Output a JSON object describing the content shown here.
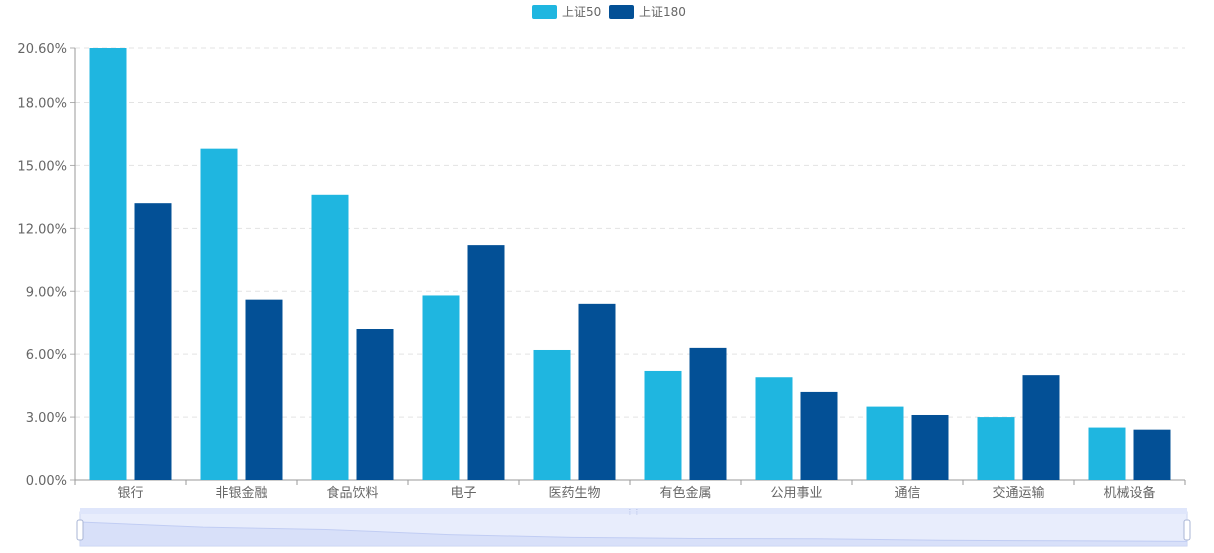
{
  "chart_data": {
    "type": "bar",
    "title": "",
    "xlabel": "",
    "ylabel": "",
    "categories": [
      "银行",
      "非银金融",
      "食品饮料",
      "电子",
      "医药生物",
      "有色金属",
      "公用事业",
      "通信",
      "交通运输",
      "机械设备"
    ],
    "series": [
      {
        "name": "上证50",
        "color": "#1fb6e0",
        "values": [
          20.6,
          15.8,
          13.6,
          8.8,
          6.2,
          5.2,
          4.9,
          3.5,
          3.0,
          2.5
        ]
      },
      {
        "name": "上证180",
        "color": "#035096",
        "values": [
          13.2,
          8.6,
          7.2,
          11.2,
          8.4,
          6.3,
          4.2,
          3.1,
          5.0,
          2.4
        ]
      }
    ],
    "yticks": [
      0,
      3,
      6,
      9,
      12,
      15,
      18,
      20.6
    ],
    "ytick_labels": [
      "0.00%",
      "3.00%",
      "6.00%",
      "9.00%",
      "12.00%",
      "15.00%",
      "18.00%",
      "20.60%"
    ],
    "ylim": [
      0,
      20.6
    ],
    "grid": true,
    "legend_position": "top-center"
  },
  "data_zoom": {
    "range_start_percent": 0,
    "range_end_percent": 100,
    "fill_color": "#d5defa",
    "border_color": "#c9d3ef"
  }
}
